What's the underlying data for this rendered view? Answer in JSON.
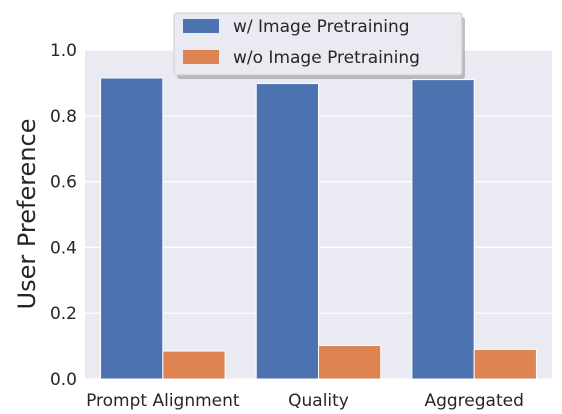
{
  "chart_data": {
    "type": "bar",
    "categories": [
      "Prompt Alignment",
      "Quality",
      "Aggregated"
    ],
    "series": [
      {
        "name": "w/ Image Pretraining",
        "values": [
          0.915,
          0.898,
          0.91
        ],
        "color": "#4c72b0"
      },
      {
        "name": "w/o Image Pretraining",
        "values": [
          0.085,
          0.102,
          0.09
        ],
        "color": "#dd8452"
      }
    ],
    "title": "",
    "xlabel": "",
    "ylabel": "User Preference",
    "ylim": [
      0,
      1.0
    ],
    "yticks": [
      "0.0",
      "0.2",
      "0.4",
      "0.6",
      "0.8",
      "1.0"
    ],
    "grid": true,
    "legend_position": "top-center",
    "background_color": "#eaeaf2"
  }
}
